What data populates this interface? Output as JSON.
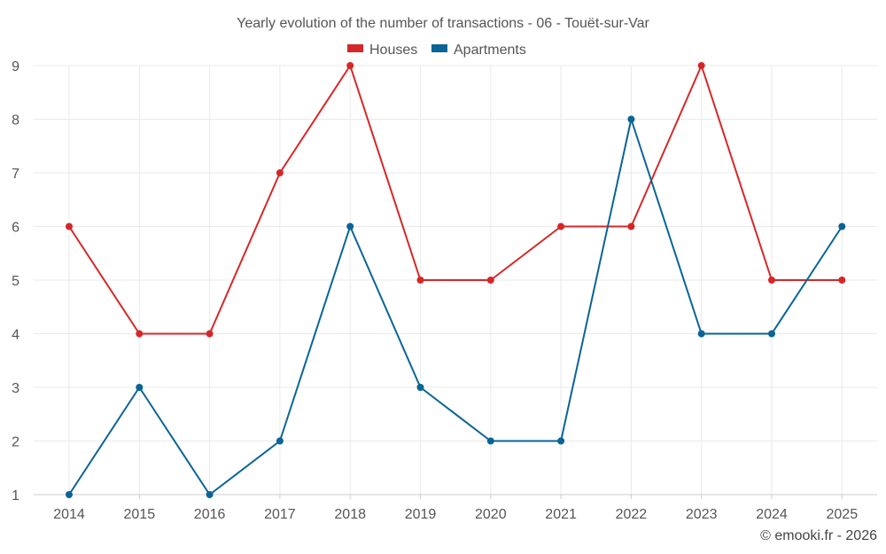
{
  "chart_data": {
    "type": "line",
    "title": "Yearly evolution of the number of transactions - 06 - Touët-sur-Var",
    "categories": [
      "2014",
      "2015",
      "2016",
      "2017",
      "2018",
      "2019",
      "2020",
      "2021",
      "2022",
      "2023",
      "2024",
      "2025"
    ],
    "series": [
      {
        "name": "Houses",
        "color": "#d62728",
        "values": [
          6,
          4,
          4,
          7,
          9,
          5,
          5,
          6,
          6,
          9,
          5,
          5
        ]
      },
      {
        "name": "Apartments",
        "color": "#0a6496",
        "values": [
          1,
          3,
          1,
          2,
          6,
          3,
          2,
          2,
          8,
          4,
          4,
          6
        ]
      }
    ],
    "yticks": [
      "1",
      "2",
      "3",
      "4",
      "5",
      "6",
      "7",
      "8",
      "9"
    ],
    "ylim": [
      1,
      9
    ],
    "grid": true,
    "legend_position": "top-center"
  },
  "credit": "© emooki.fr - 2026"
}
